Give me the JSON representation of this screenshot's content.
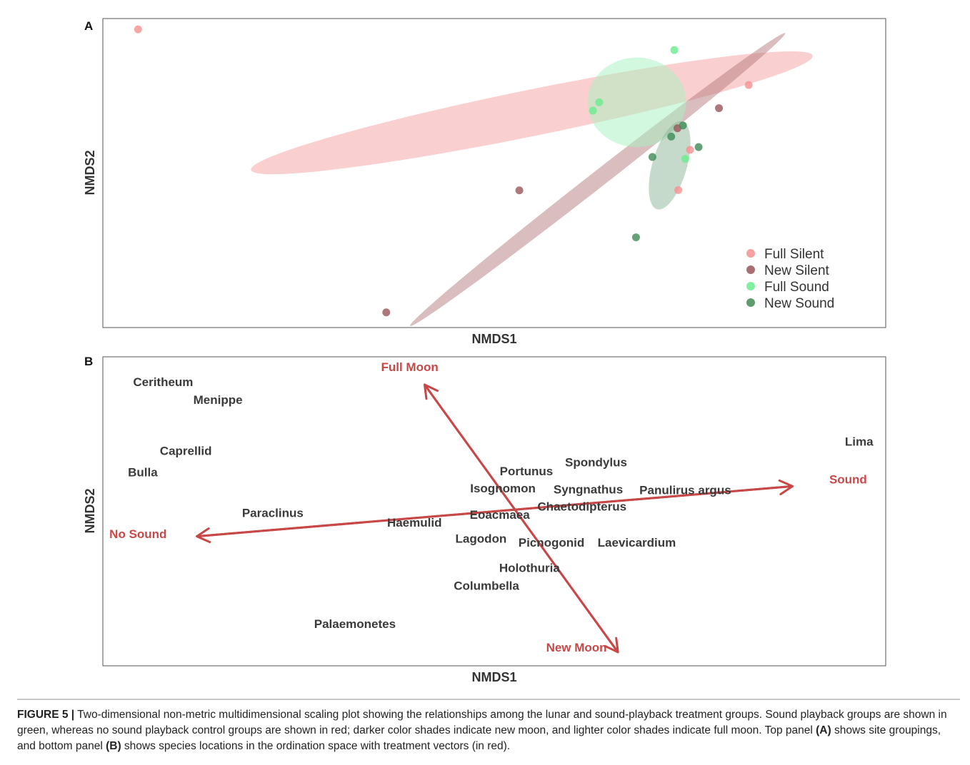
{
  "chart_data": [
    {
      "panel_label": "A",
      "type": "scatter",
      "xlabel": "NMDS1",
      "ylabel": "NMDS2",
      "xlim": [
        0,
        100
      ],
      "ylim": [
        0,
        100
      ],
      "series": [
        {
          "name": "Full Silent",
          "color": "#f79090",
          "points": [
            [
              4.5,
              96.5
            ],
            [
              82.5,
              78.5
            ],
            [
              75.0,
              57.5
            ],
            [
              73.5,
              44.5
            ]
          ],
          "ellipse": {
            "cx": 54.8,
            "cy": 69.5,
            "rx": 36.6,
            "ry": 7.5,
            "angle": -11.5,
            "color": "#f5a0a0"
          }
        },
        {
          "name": "New Silent",
          "color": "#9a5558",
          "points": [
            [
              78.7,
              71.0
            ],
            [
              73.4,
              64.5
            ],
            [
              53.2,
              44.4
            ],
            [
              36.2,
              4.9
            ]
          ],
          "ellipse": {
            "cx": 63.2,
            "cy": 47.9,
            "rx": 30.4,
            "ry": 2.6,
            "angle": -38,
            "color": "#b67c80"
          }
        },
        {
          "name": "Full Sound",
          "color": "#69ec8f",
          "points": [
            [
              73.0,
              89.8
            ],
            [
              63.4,
              72.9
            ],
            [
              62.6,
              70.2
            ],
            [
              74.4,
              54.6
            ]
          ],
          "ellipse": {
            "cx": 68.2,
            "cy": 72.9,
            "rx": 6.3,
            "ry": 14.5,
            "angle": 0,
            "color": "#a6f3bf"
          }
        },
        {
          "name": "New Sound",
          "color": "#3f8b55",
          "points": [
            [
              74.1,
              65.4
            ],
            [
              72.6,
              61.8
            ],
            [
              70.2,
              55.2
            ],
            [
              76.1,
              58.4
            ],
            [
              68.1,
              29.2
            ]
          ],
          "ellipse": {
            "cx": 72.4,
            "cy": 52.5,
            "rx": 2.2,
            "ry": 14.8,
            "angle": 16,
            "color": "#8db69a"
          }
        }
      ],
      "legend": [
        "Full Silent",
        "New Silent",
        "Full Sound",
        "New Sound"
      ],
      "legend_position": "bottom-right"
    },
    {
      "panel_label": "B",
      "type": "scatter",
      "xlabel": "NMDS1",
      "ylabel": "NMDS2",
      "xlim": [
        0,
        100
      ],
      "ylim": [
        0,
        100
      ],
      "species": [
        {
          "name": "Ceritheum",
          "x": 7.7,
          "y": 90.5
        },
        {
          "name": "Menippe",
          "x": 14.7,
          "y": 84.8
        },
        {
          "name": "Caprellid",
          "x": 10.6,
          "y": 68.2
        },
        {
          "name": "Bulla",
          "x": 5.1,
          "y": 61.3
        },
        {
          "name": "Lima",
          "x": 96.6,
          "y": 71.2
        },
        {
          "name": "Spondylus",
          "x": 63.0,
          "y": 64.5
        },
        {
          "name": "Portunus",
          "x": 54.1,
          "y": 61.7
        },
        {
          "name": "Isognomon",
          "x": 51.1,
          "y": 56.1
        },
        {
          "name": "Syngnathus",
          "x": 62.0,
          "y": 55.8
        },
        {
          "name": "Panulirus argus",
          "x": 74.4,
          "y": 55.5
        },
        {
          "name": "Chaetodipterus",
          "x": 61.2,
          "y": 50.2
        },
        {
          "name": "Paraclinus",
          "x": 21.7,
          "y": 48.1
        },
        {
          "name": "Eoacmaea",
          "x": 50.7,
          "y": 47.6
        },
        {
          "name": "Haemulid",
          "x": 39.8,
          "y": 45.0
        },
        {
          "name": "Lagodon",
          "x": 48.3,
          "y": 39.8
        },
        {
          "name": "Picnogonid",
          "x": 57.3,
          "y": 38.6
        },
        {
          "name": "Laevicardium",
          "x": 68.2,
          "y": 38.6
        },
        {
          "name": "Holothuria",
          "x": 54.5,
          "y": 30.4
        },
        {
          "name": "Columbella",
          "x": 49.0,
          "y": 24.6
        },
        {
          "name": "Palaemonetes",
          "x": 32.2,
          "y": 12.2
        }
      ],
      "vectors": [
        {
          "label": "Full Moon",
          "x1": 65.8,
          "y1": 4.4,
          "x2": 41.1,
          "y2": 91.0,
          "label_x": 39.2,
          "label_y": 95.4
        },
        {
          "label": "New Moon",
          "x1": 41.1,
          "y1": 91.0,
          "x2": 65.8,
          "y2": 4.4,
          "label_x": 60.5,
          "label_y": 4.6
        },
        {
          "label": "Sound",
          "x1": 12.0,
          "y1": 41.9,
          "x2": 88.1,
          "y2": 58.1,
          "label_x": 95.2,
          "label_y": 59.0
        },
        {
          "label": "No Sound",
          "x1": 88.1,
          "y1": 58.1,
          "x2": 12.0,
          "y2": 41.9,
          "label_x": 4.5,
          "label_y": 41.3
        }
      ],
      "vector_color": "#c84848"
    }
  ],
  "caption": {
    "lead": "FIGURE 5 |",
    "part1": " Two-dimensional non-metric multidimensional scaling plot showing the relationships among the lunar and sound-playback treatment groups. Sound playback groups are shown in green, whereas no sound playback control groups are shown in red; darker color shades indicate new moon, and lighter color shades indicate full moon. Top panel ",
    "ref_a": "(A)",
    "part2": " shows site groupings, and bottom panel ",
    "ref_b": "(B)",
    "part3": " shows species locations in the ordination space with treatment vectors (in red)."
  }
}
